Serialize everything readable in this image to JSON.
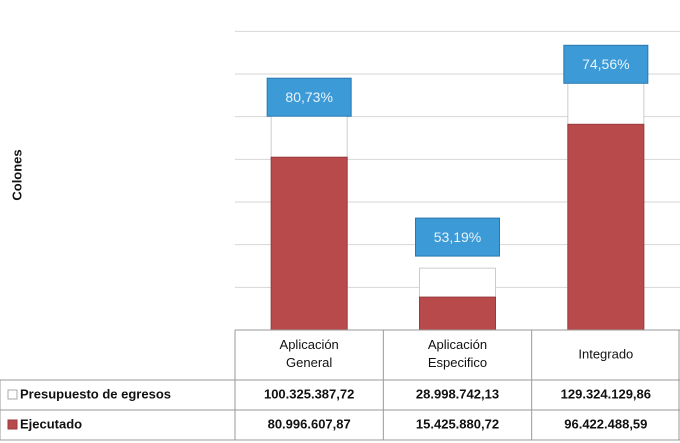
{
  "chart_data": {
    "type": "bar",
    "y_label": "Colones",
    "categories": [
      "Aplicación General",
      "Aplicación Especifico",
      "Integrado"
    ],
    "series": [
      {
        "name": "Presupuesto de egresos",
        "color": "#ffffff",
        "values": [
          100325387.72,
          28998742.13,
          129324129.86
        ],
        "value_labels": [
          "100.325.387,72",
          "28.998.742,13",
          "129.324.129,86"
        ]
      },
      {
        "name": "Ejecutado",
        "color": "#b84a4c",
        "values": [
          80996607.87,
          15425880.72,
          96422488.59
        ],
        "value_labels": [
          "80.996.607,87",
          "15.425.880,72",
          "96.422.488,59"
        ]
      }
    ],
    "percentages": [
      80.73,
      53.19,
      74.56
    ],
    "percentage_labels": [
      "80,73%",
      "53,19%",
      "74,56%"
    ],
    "percentage_color": "#3c9ad6",
    "ylim": [
      0,
      150000000
    ],
    "yticks": [
      0,
      20000000,
      40000000,
      60000000,
      80000000,
      100000000,
      120000000,
      140000000
    ],
    "grid": true
  }
}
